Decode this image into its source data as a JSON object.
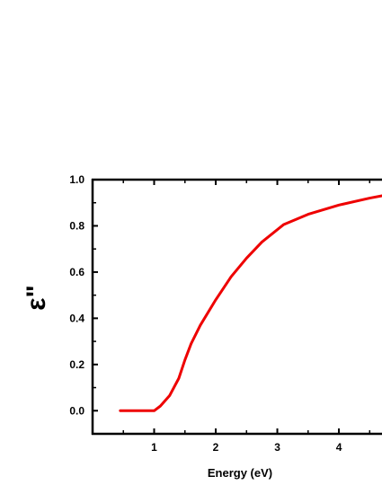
{
  "chart_data": {
    "type": "line",
    "title": "",
    "xlabel": "Energy (eV)",
    "ylabel": "ε\"",
    "xlim": [
      0.0,
      4.7
    ],
    "ylim": [
      -0.1,
      1.0
    ],
    "x_ticks": [
      1,
      2,
      3,
      4
    ],
    "x_tick_labels": [
      "1",
      "2",
      "3",
      "4"
    ],
    "y_ticks": [
      0.0,
      0.2,
      0.4,
      0.6,
      0.8,
      1.0
    ],
    "y_tick_labels": [
      "0.0",
      "0.2",
      "0.4",
      "0.6",
      "0.8",
      "1.0"
    ],
    "grid": false,
    "legend": "none",
    "series": [
      {
        "color": "#ee0000",
        "x": [
          0.45,
          0.7,
          1.0,
          1.1,
          1.25,
          1.4,
          1.5,
          1.6,
          1.75,
          2.0,
          2.25,
          2.5,
          2.75,
          3.1,
          3.5,
          4.0,
          4.5,
          4.7
        ],
        "y": [
          0.0,
          0.0,
          0.0,
          0.02,
          0.065,
          0.14,
          0.22,
          0.29,
          0.37,
          0.48,
          0.58,
          0.66,
          0.73,
          0.805,
          0.85,
          0.89,
          0.92,
          0.93
        ]
      }
    ]
  }
}
